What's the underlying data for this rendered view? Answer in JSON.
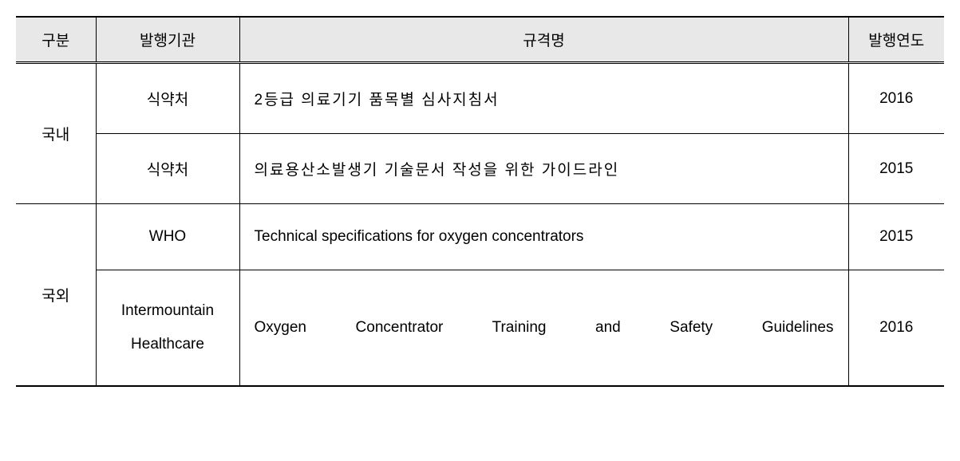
{
  "table": {
    "headers": {
      "category": "구분",
      "issuer": "발행기관",
      "spec_name": "규격명",
      "year": "발행연도"
    },
    "categories": {
      "domestic": "국내",
      "foreign": "국외"
    },
    "rows": [
      {
        "issuer": "식약처",
        "spec_name": "2등급 의료기기 품목별 심사지침서",
        "year": "2016"
      },
      {
        "issuer": "식약처",
        "spec_name": "의료용산소발생기 기술문서 작성을 위한 가이드라인",
        "year": "2015"
      },
      {
        "issuer": "WHO",
        "spec_name": "Technical specifications for oxygen concentrators",
        "year": "2015"
      },
      {
        "issuer": "Intermountain Healthcare",
        "spec_name": "Oxygen Concentrator Training and Safety Guidelines",
        "year": "2016"
      }
    ],
    "styling": {
      "header_bg": "#e8e8e8",
      "border_color": "#000000",
      "outer_border_width": 2,
      "inner_border_width": 1,
      "font_size": 19,
      "text_color": "#000000",
      "background_color": "#ffffff",
      "col_widths": {
        "category": 100,
        "issuer": 180,
        "year": 120
      }
    }
  }
}
